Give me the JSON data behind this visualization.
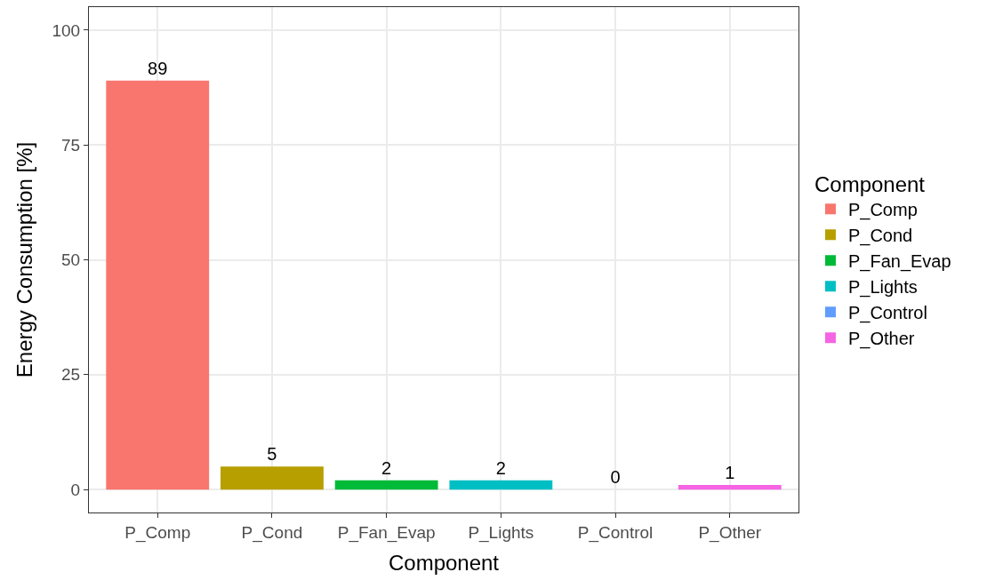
{
  "chart_data": {
    "type": "bar",
    "xlabel": "Component",
    "ylabel": "Energy Consumption [%]",
    "legend_title": "Component",
    "categories": [
      "P_Comp",
      "P_Cond",
      "P_Fan_Evap",
      "P_Lights",
      "P_Control",
      "P_Other"
    ],
    "series": [
      {
        "name": "P_Comp",
        "color": "#f8766d",
        "values": [
          89,
          null,
          null,
          null,
          null,
          null
        ]
      },
      {
        "name": "P_Cond",
        "color": "#b79f00",
        "values": [
          null,
          5,
          null,
          null,
          null,
          null
        ]
      },
      {
        "name": "P_Fan_Evap",
        "color": "#00ba38",
        "values": [
          null,
          null,
          2,
          null,
          null,
          null
        ]
      },
      {
        "name": "P_Lights",
        "color": "#00bfc4",
        "values": [
          null,
          null,
          null,
          2,
          null,
          null
        ]
      },
      {
        "name": "P_Control",
        "color": "#619cff",
        "values": [
          null,
          null,
          null,
          null,
          0,
          null
        ]
      },
      {
        "name": "P_Other",
        "color": "#f564e3",
        "values": [
          null,
          null,
          null,
          null,
          null,
          1
        ]
      }
    ],
    "ylim": [
      -5,
      105
    ],
    "yticks": [
      0,
      25,
      50,
      75,
      100
    ],
    "grid": true,
    "legend": "right",
    "data_labels": true
  }
}
